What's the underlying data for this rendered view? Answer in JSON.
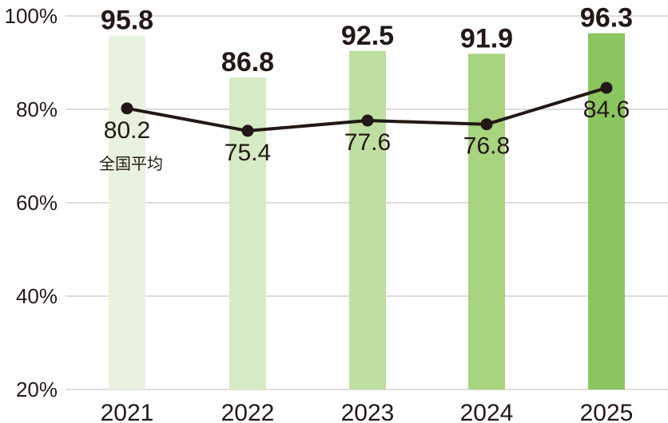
{
  "chart_data": {
    "type": "bar",
    "categories": [
      "2021",
      "2022",
      "2023",
      "2024",
      "2025"
    ],
    "series": [
      {
        "type": "bar",
        "values": [
          95.8,
          86.8,
          92.5,
          91.9,
          96.3
        ],
        "colors": [
          "#e8f2df",
          "#d6eac4",
          "#bfdea1",
          "#a8d37f",
          "#8bc560"
        ]
      },
      {
        "type": "line",
        "name": "全国平均",
        "values": [
          80.2,
          75.4,
          77.6,
          76.8,
          84.6
        ],
        "color": "#231815"
      }
    ],
    "yticks": [
      "20%",
      "40%",
      "60%",
      "80%",
      "100%"
    ],
    "ylim": [
      20,
      100
    ],
    "grid": true
  }
}
